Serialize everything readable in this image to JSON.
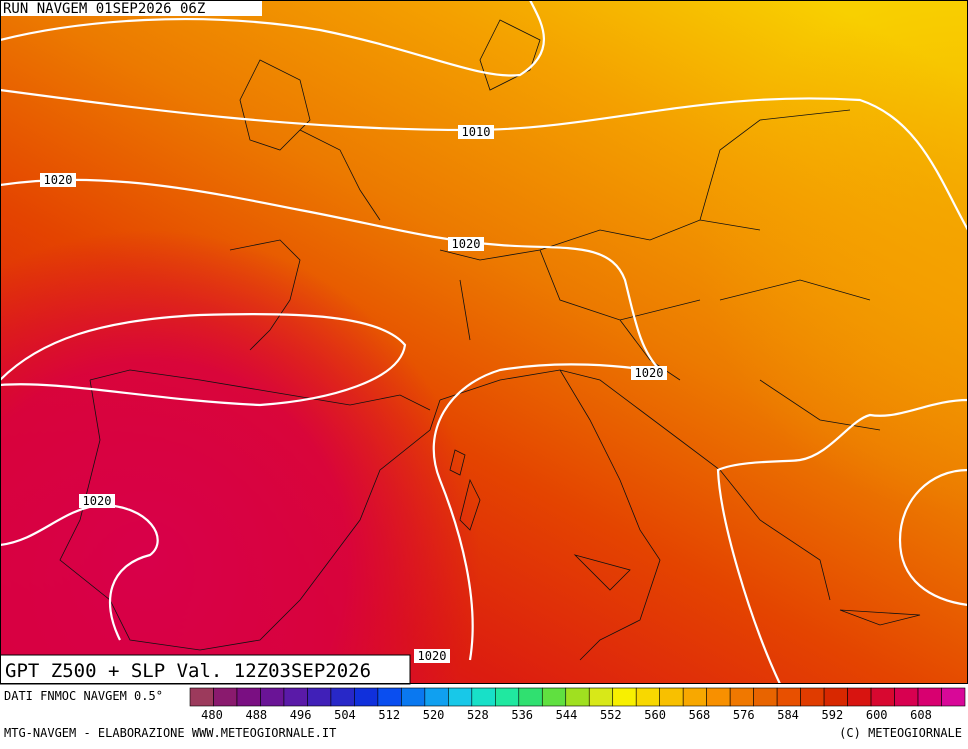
{
  "header": {
    "run": "RUN NAVGEM 01SEP2026 06Z"
  },
  "map": {
    "title": "GPT Z500 + SLP Val. 12Z03SEP2026",
    "isobar_labels": [
      "1010",
      "1020",
      "1020",
      "1020",
      "1020",
      "1020"
    ]
  },
  "legend": {
    "source": "DATI FNMOC NAVGEM 0.5°",
    "ticks": [
      480,
      488,
      496,
      504,
      512,
      520,
      528,
      536,
      544,
      552,
      560,
      568,
      576,
      584,
      592,
      600,
      608
    ],
    "colors": [
      "#9c3a5c",
      "#8a1a6e",
      "#7a0f82",
      "#6a1496",
      "#5a1aa8",
      "#4020b8",
      "#2828c8",
      "#1030dc",
      "#0a4ef0",
      "#0a78f0",
      "#10a0f0",
      "#18c8e8",
      "#18e0c8",
      "#20e8a0",
      "#30e070",
      "#60e040",
      "#a0e020",
      "#d8e818",
      "#f8f000",
      "#f8d800",
      "#f8c000",
      "#f8a800",
      "#f89000",
      "#f07800",
      "#e86400",
      "#e85000",
      "#e03c00",
      "#d82800",
      "#d81410",
      "#d80830",
      "#d80050",
      "#d80070",
      "#d80898"
    ]
  },
  "footer": {
    "left": "MTG-NAVGEM - ELABORAZIONE WWW.METEOGIORNALE.IT",
    "right": "(C) METEOGIORNALE"
  }
}
